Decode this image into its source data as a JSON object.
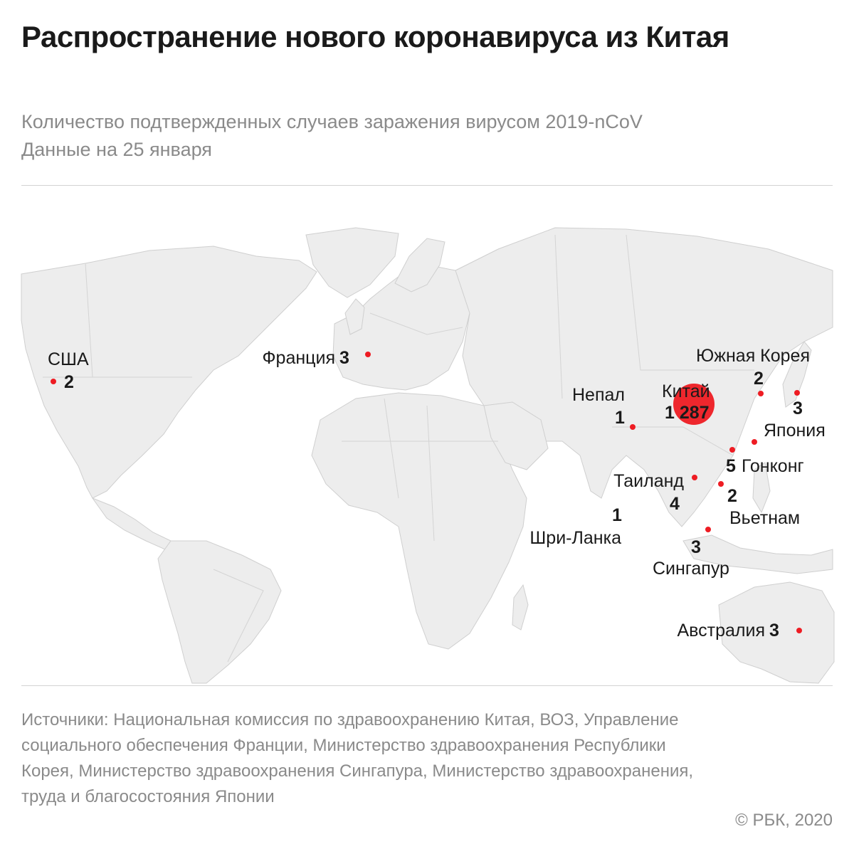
{
  "title": "Распространение нового коронавируса из Китая",
  "subtitle_line1": "Количество подтвержденных случаев заражения вирусом 2019-nCoV",
  "subtitle_line2": "Данные на 25 января",
  "colors": {
    "marker": "#ee1c23",
    "land": "#ededed",
    "text": "#1a1a1a",
    "muted": "#8a8a8a"
  },
  "locations": [
    {
      "name": "США",
      "count": "2"
    },
    {
      "name": "Франция",
      "count": "3"
    },
    {
      "name": "Китай",
      "count": "1 287"
    },
    {
      "name": "Непал",
      "count": "1"
    },
    {
      "name": "Южная Корея",
      "count": "2"
    },
    {
      "name": "Япония",
      "count": "3"
    },
    {
      "name": "Гонконг",
      "count": "5"
    },
    {
      "name": "Таиланд",
      "count": "4"
    },
    {
      "name": "Вьетнам",
      "count": "2"
    },
    {
      "name": "Шри-Ланка",
      "count": "1"
    },
    {
      "name": "Сингапур",
      "count": "3"
    },
    {
      "name": "Австралия",
      "count": "3"
    }
  ],
  "sources": "Источники: Национальная комиссия по здравоохранению Китая, ВОЗ, Управление социального обеспечения Франции, Министерство здравоохранения Республики Корея, Министерство здравоохранения Сингапура, Министерство здравоохранения, труда и благосостояния Японии",
  "copyright": "© РБК, 2020"
}
